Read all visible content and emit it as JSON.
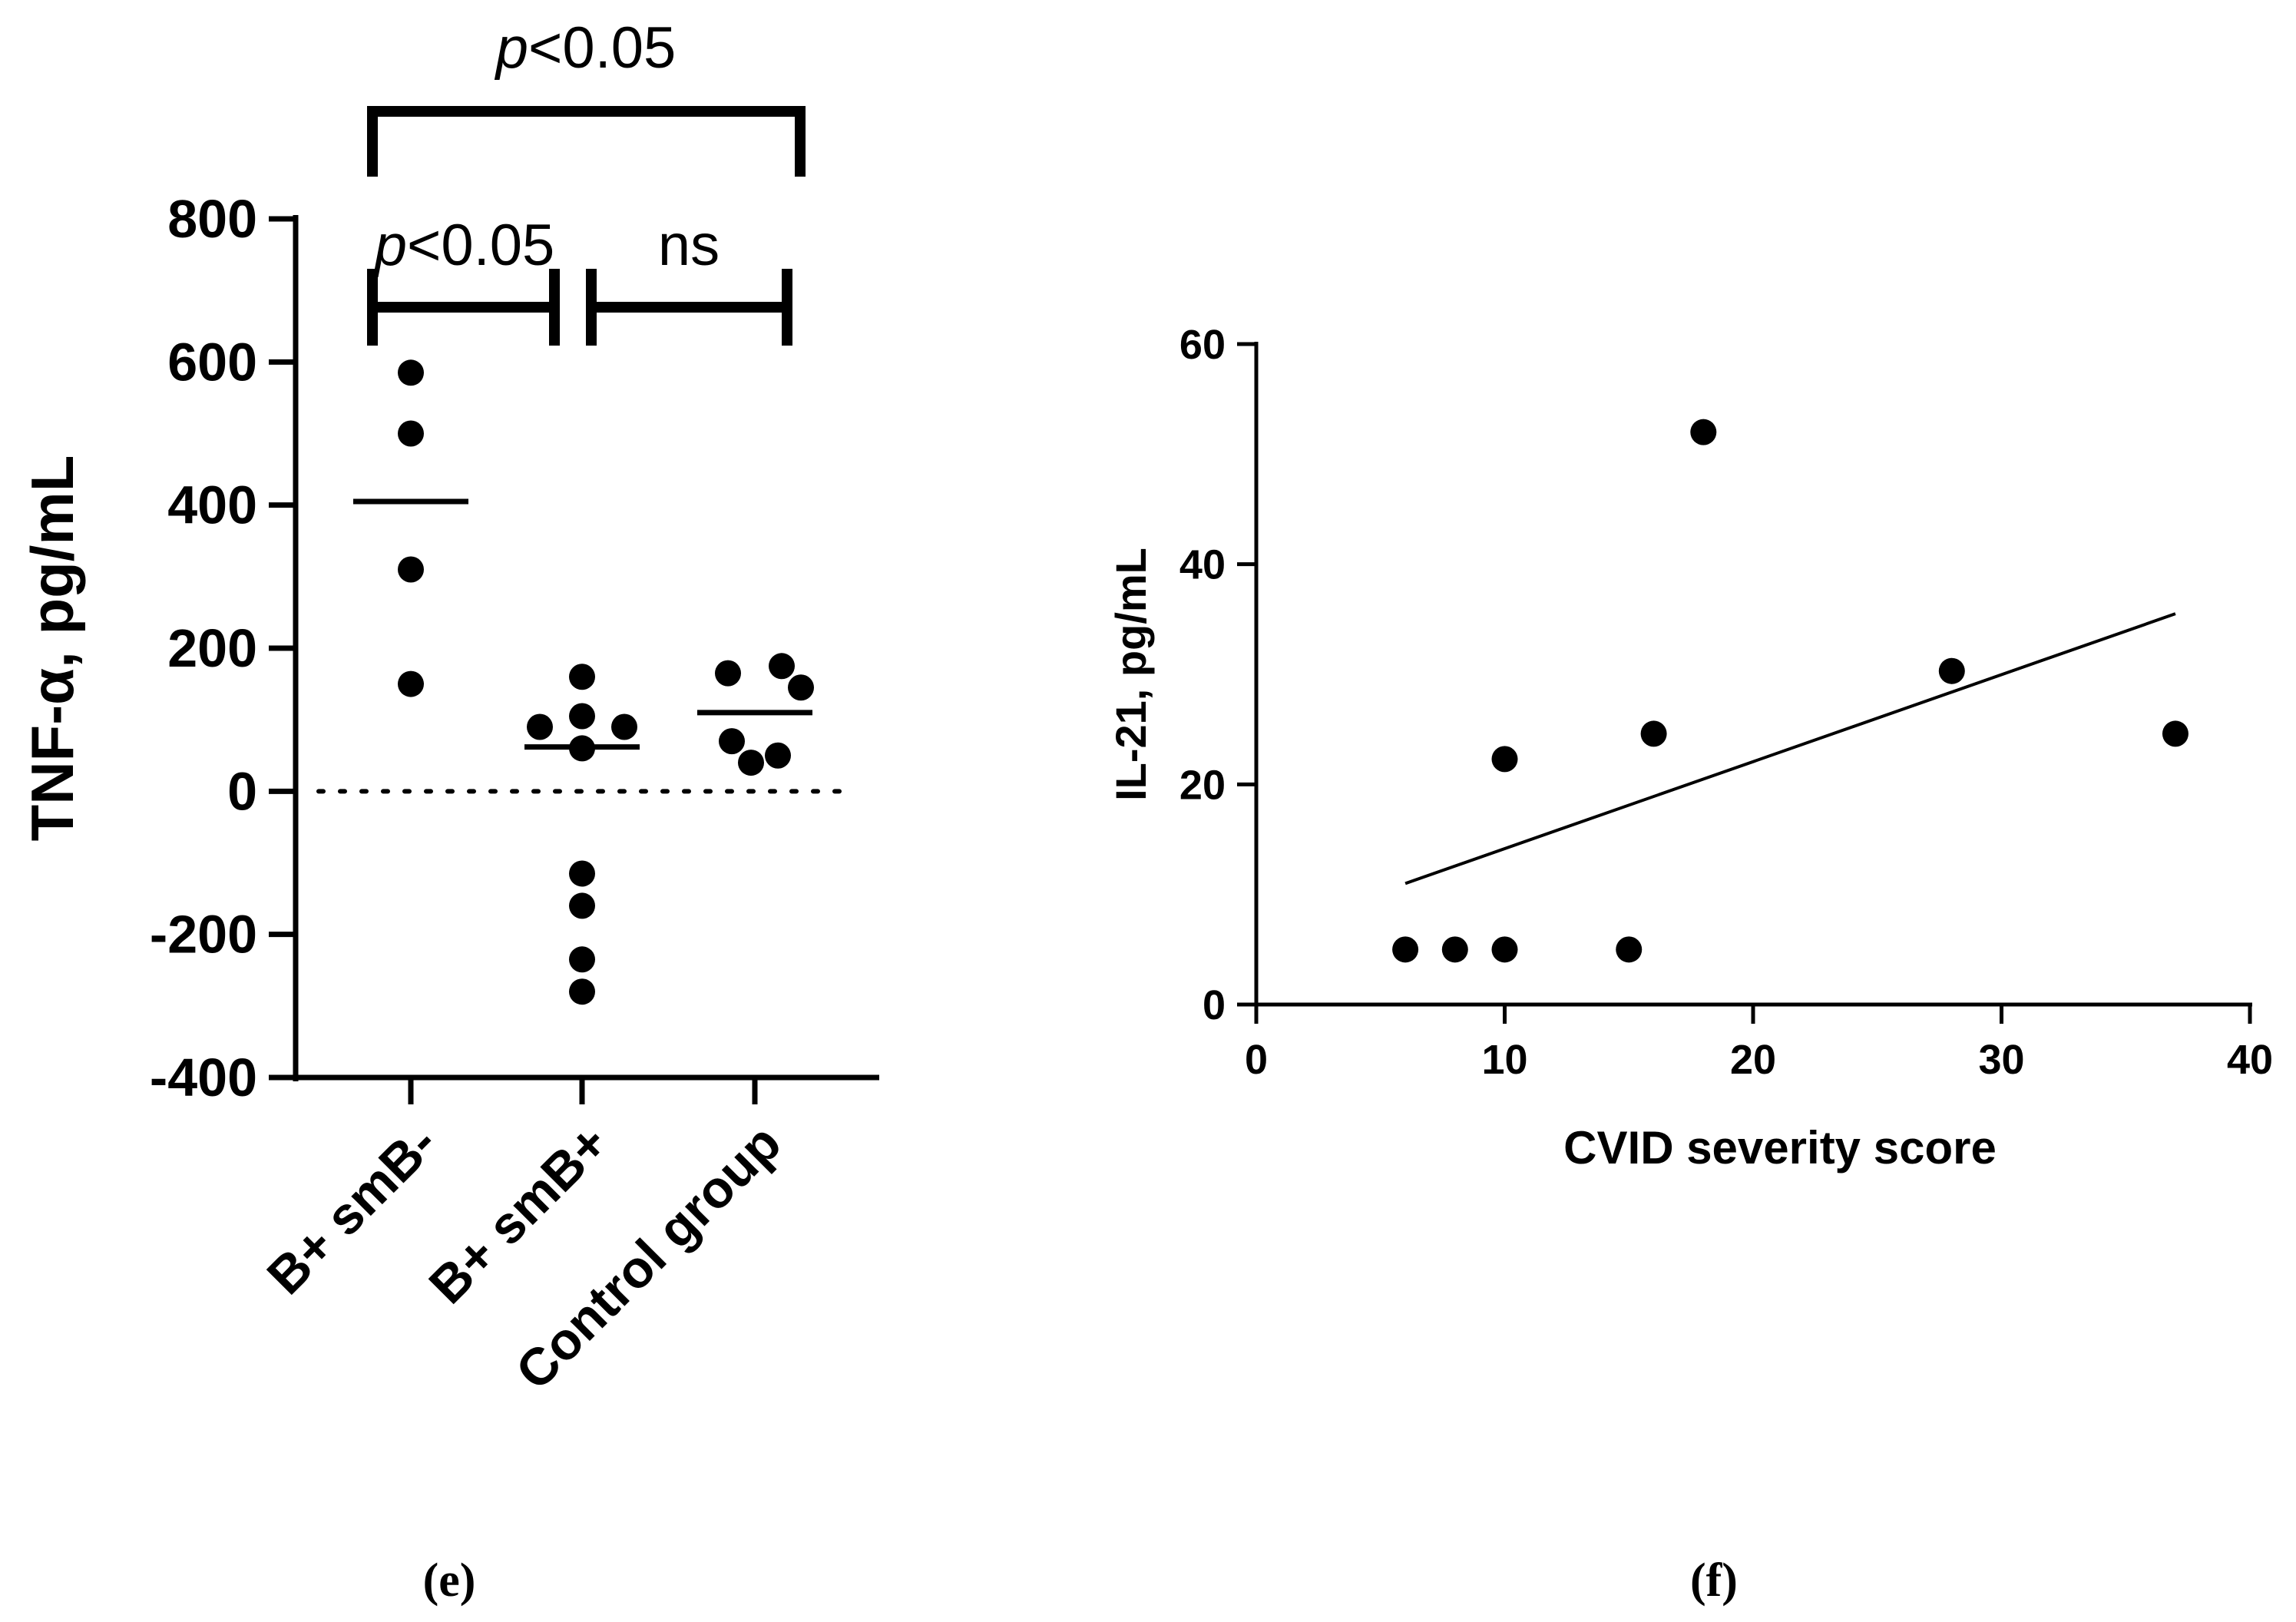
{
  "chart_data": [
    {
      "type": "scatter",
      "panel_label": "(e)",
      "ylabel": "TNF-α, pg/mL",
      "ylim": [
        -400,
        800
      ],
      "yticks": [
        -400,
        -200,
        0,
        200,
        400,
        600,
        800
      ],
      "categories": [
        "B+ smB-",
        "B+ smB+",
        "Control group"
      ],
      "points": [
        [
          585,
          500,
          310,
          150
        ],
        [
          160,
          105,
          90,
          90,
          60,
          -115,
          -160,
          -235,
          -280
        ],
        [
          165,
          175,
          145,
          70,
          50,
          40
        ]
      ],
      "means": [
        405,
        62,
        110
      ],
      "reference_line": 0,
      "comparisons": [
        {
          "from": 0,
          "to": 1,
          "label_prefix": "p",
          "label_suffix": "<0.05"
        },
        {
          "from": 1,
          "to": 2,
          "label_prefix": "",
          "label_suffix": "ns"
        },
        {
          "from": 0,
          "to": 2,
          "label_prefix": "p",
          "label_suffix": "<0.05"
        }
      ]
    },
    {
      "type": "scatter",
      "panel_label": "(f)",
      "xlabel": "CVID severity score",
      "ylabel": "IL-21, pg/mL",
      "xlim": [
        0,
        40
      ],
      "ylim": [
        0,
        60
      ],
      "xticks": [
        0,
        10,
        20,
        30,
        40
      ],
      "yticks": [
        0,
        20,
        40,
        60
      ],
      "x": [
        6,
        8,
        10,
        10,
        15,
        16,
        18,
        28,
        37
      ],
      "y": [
        5,
        5,
        5,
        22.3,
        5,
        24.6,
        52,
        30.3,
        24.6
      ],
      "regression": {
        "x": [
          6,
          37
        ],
        "y": [
          11,
          35.5
        ]
      }
    }
  ]
}
